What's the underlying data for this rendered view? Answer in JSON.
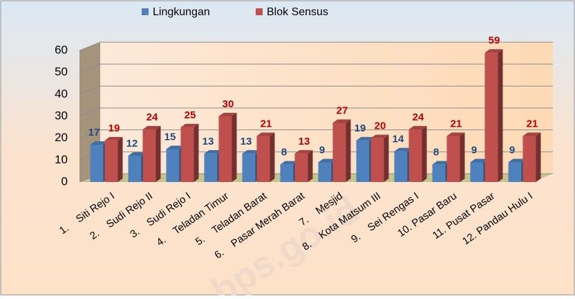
{
  "chart_data": {
    "type": "bar3d",
    "categories": [
      "1.    Siti Rejo I",
      "2.    Sudi Rejo II",
      "3.    Sudi Rejo I",
      "4.    Teladan Timur",
      "5.    Teladan Barat",
      "6.    Pasar Merah Barat",
      "7.    Mesjid",
      "8.    Kota Matsum III",
      "9.    Sei Rengas I",
      "10. Pasar Baru",
      "11. Pusat Pasar",
      "12. Pandau Hulu I"
    ],
    "series": [
      {
        "name": "Lingkungan",
        "color": "#4f81bd",
        "label_color": "#1f497d",
        "values": [
          17,
          12,
          15,
          13,
          13,
          8,
          9,
          19,
          14,
          8,
          9,
          9
        ]
      },
      {
        "name": "Blok Sensus",
        "color": "#c0504d",
        "label_color": "#c00000",
        "values": [
          19,
          24,
          25,
          30,
          21,
          13,
          27,
          20,
          24,
          21,
          59,
          21
        ]
      }
    ],
    "ylim": [
      0,
      60
    ],
    "yticks": [
      0,
      10,
      20,
      30,
      40,
      50,
      60
    ],
    "grid": true,
    "legend": "top",
    "watermark": "bps.go.id"
  }
}
